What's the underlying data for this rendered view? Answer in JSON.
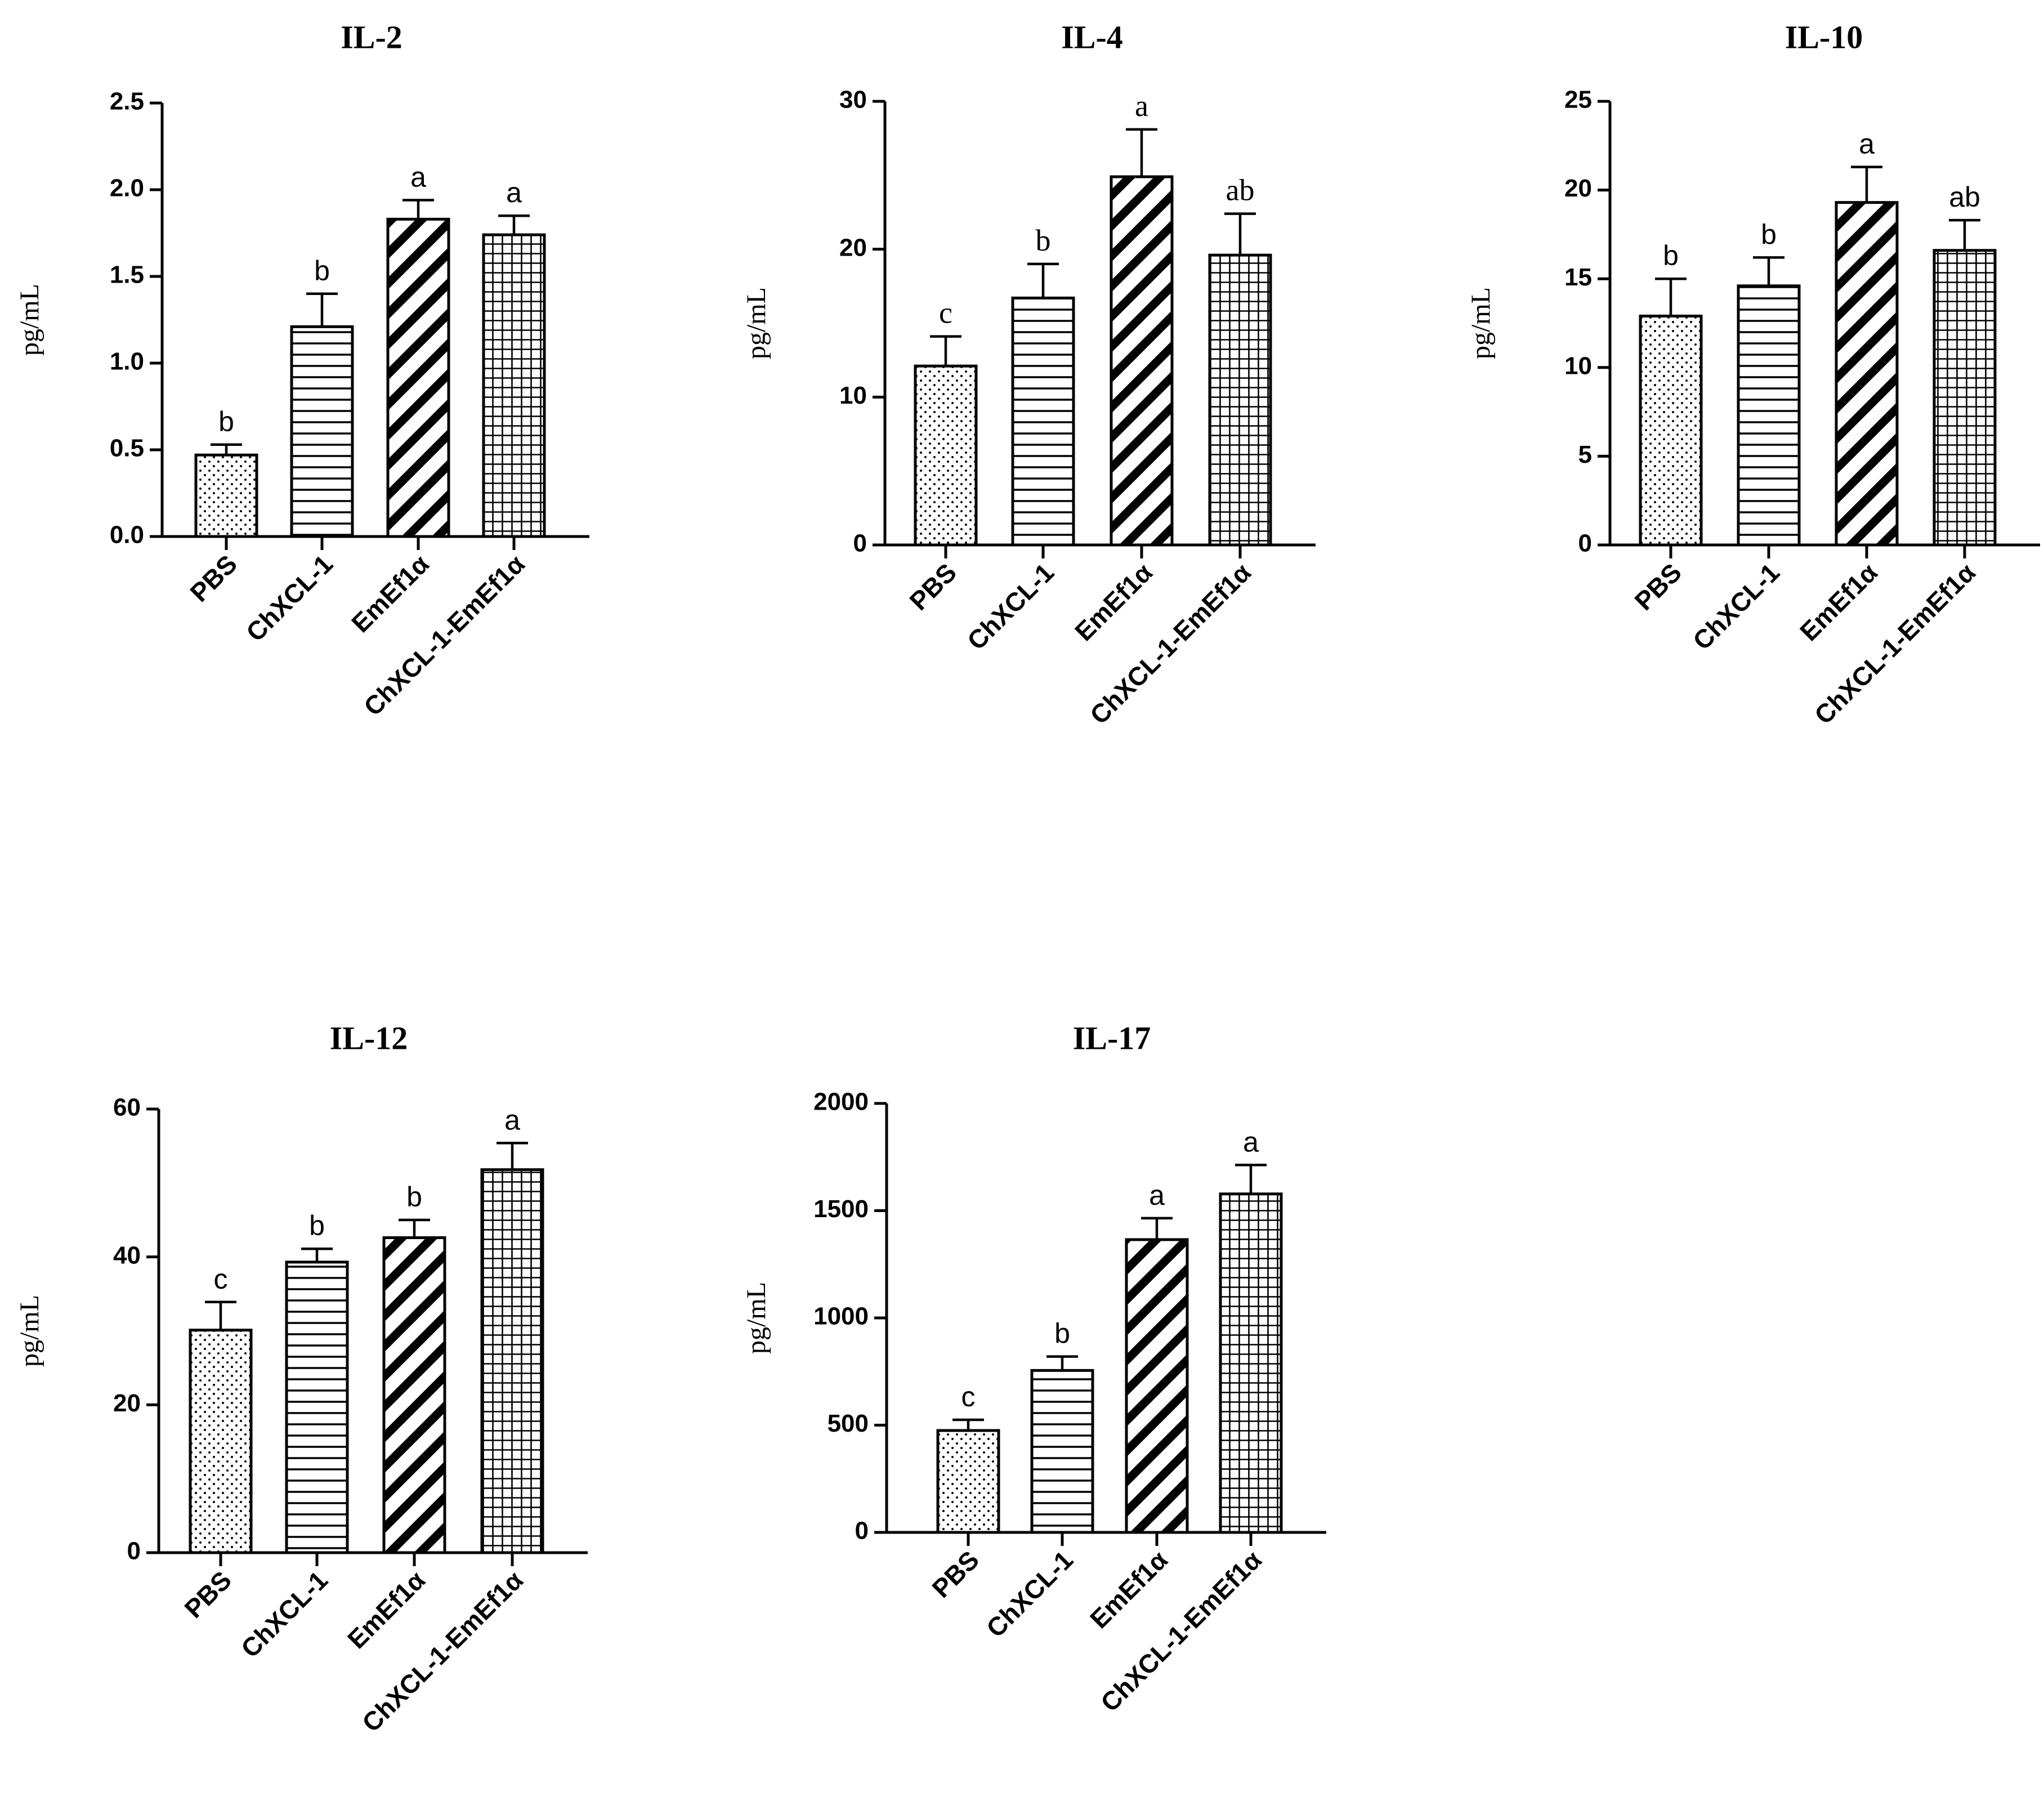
{
  "chart_data": [
    {
      "type": "bar",
      "title": "IL-2",
      "ylabel": "pg/mL",
      "xlabel": "",
      "ylim": [
        0,
        2.5
      ],
      "yticks": [
        "0.0",
        "0.5",
        "1.0",
        "1.5",
        "2.0",
        "2.5"
      ],
      "categories": [
        "PBS",
        "ChXCL-1",
        "EmEf1α",
        "ChXCL-1-EmEf1α"
      ],
      "values": [
        0.47,
        1.21,
        1.83,
        1.74
      ],
      "errors": [
        0.06,
        0.19,
        0.11,
        0.11
      ],
      "significance": [
        "b",
        "b",
        "a",
        "a"
      ],
      "patterns": [
        "dots",
        "horizontal",
        "diagonal",
        "grid"
      ]
    },
    {
      "type": "bar",
      "title": "IL-4",
      "ylabel": "pg/mL",
      "xlabel": "",
      "ylim": [
        0,
        30
      ],
      "yticks": [
        "0",
        "10",
        "20",
        "30"
      ],
      "categories": [
        "PBS",
        "ChXCL-1",
        "EmEf1α",
        "ChXCL-1-EmEf1α"
      ],
      "values": [
        12.1,
        16.7,
        24.9,
        19.6
      ],
      "errors": [
        2.0,
        2.3,
        3.2,
        2.8
      ],
      "significance": [
        "c",
        "b",
        "a",
        "ab"
      ],
      "patterns": [
        "dots",
        "horizontal",
        "diagonal",
        "grid"
      ]
    },
    {
      "type": "bar",
      "title": "IL-10",
      "ylabel": "pg/mL",
      "xlabel": "",
      "ylim": [
        0,
        25
      ],
      "yticks": [
        "0",
        "5",
        "10",
        "15",
        "20",
        "25"
      ],
      "categories": [
        "PBS",
        "ChXCL-1",
        "EmEf1α",
        "ChXCL-1-EmEf1α"
      ],
      "values": [
        12.9,
        14.6,
        19.3,
        16.6
      ],
      "errors": [
        2.1,
        1.6,
        2.0,
        1.7
      ],
      "significance": [
        "b",
        "b",
        "a",
        "ab"
      ],
      "patterns": [
        "dots",
        "horizontal",
        "diagonal",
        "grid"
      ]
    },
    {
      "type": "bar",
      "title": "IL-12",
      "ylabel": "pg/mL",
      "xlabel": "",
      "ylim": [
        0,
        60
      ],
      "yticks": [
        "0",
        "20",
        "40",
        "60"
      ],
      "categories": [
        "PBS",
        "ChXCL-1",
        "EmEf1α",
        "ChXCL-1-EmEf1α"
      ],
      "values": [
        30.1,
        39.3,
        42.6,
        51.8
      ],
      "errors": [
        3.8,
        1.8,
        2.4,
        3.6
      ],
      "significance": [
        "c",
        "b",
        "b",
        "a"
      ],
      "patterns": [
        "dots",
        "horizontal",
        "diagonal",
        "grid"
      ]
    },
    {
      "type": "bar",
      "title": "IL-17",
      "ylabel": "pg/mL",
      "xlabel": "",
      "ylim": [
        0,
        2000
      ],
      "yticks": [
        "0",
        "500",
        "1000",
        "1500",
        "2000"
      ],
      "categories": [
        "PBS",
        "ChXCL-1",
        "EmEf1α",
        "ChXCL-1-EmEf1α"
      ],
      "values": [
        475,
        755,
        1365,
        1578
      ],
      "errors": [
        50,
        65,
        100,
        135
      ],
      "significance": [
        "c",
        "b",
        "a",
        "a"
      ],
      "patterns": [
        "dots",
        "horizontal",
        "diagonal",
        "grid"
      ]
    }
  ]
}
